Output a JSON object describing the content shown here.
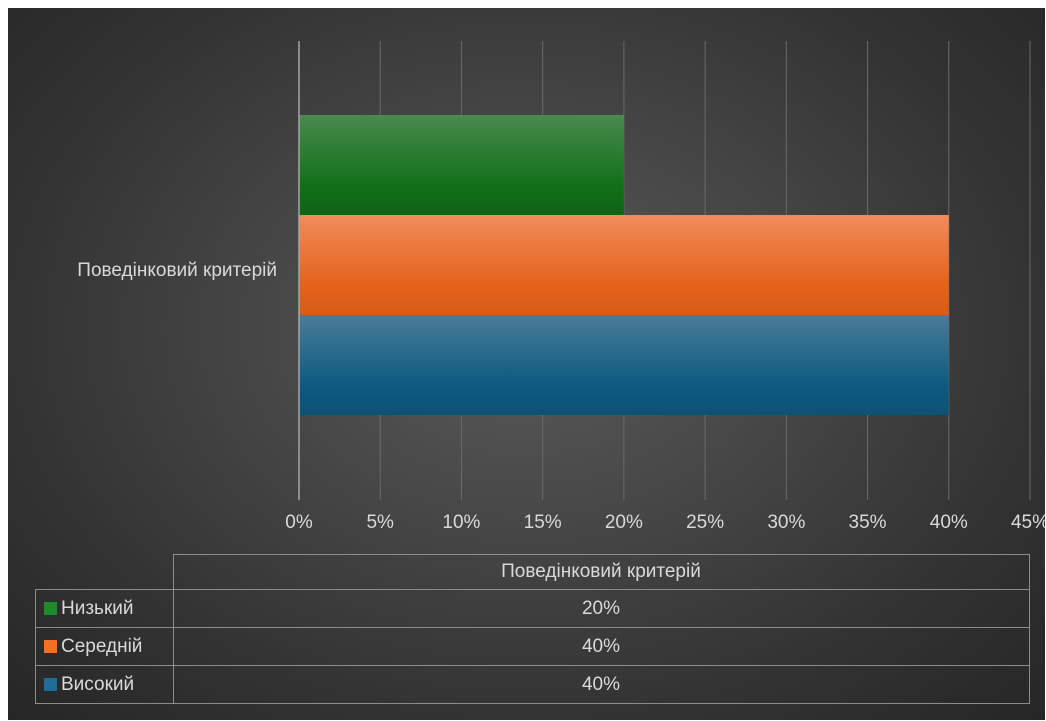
{
  "chart_data": {
    "type": "bar",
    "orientation": "horizontal",
    "categories": [
      "Поведінковий критерій"
    ],
    "series": [
      {
        "name": "Низький",
        "values": [
          20
        ],
        "color": "#1a7a22"
      },
      {
        "name": "Середній",
        "values": [
          40
        ],
        "color": "#ec6a26"
      },
      {
        "name": "Високий",
        "values": [
          40
        ],
        "color": "#1a6288"
      }
    ],
    "xlim": [
      0,
      45
    ],
    "x_ticks": [
      0,
      5,
      10,
      15,
      20,
      25,
      30,
      35,
      40,
      45
    ],
    "x_tick_labels": [
      "0%",
      "5%",
      "10%",
      "15%",
      "20%",
      "25%",
      "30%",
      "35%",
      "40%",
      "45%"
    ],
    "grid": true,
    "legend": "data table below chart",
    "title": "",
    "xlabel": "",
    "ylabel": ""
  },
  "table": {
    "column_header": "Поведінковий критерій",
    "rows": [
      {
        "label": "Низький",
        "value": "20%",
        "color": "#1f8a2a"
      },
      {
        "label": "Середній",
        "value": "40%",
        "color": "#f07028"
      },
      {
        "label": "Високий",
        "value": "40%",
        "color": "#1d6d98"
      }
    ]
  },
  "colors": {
    "background": "#404040",
    "text": "#d9d9d9",
    "gridline": "#6a6a6a",
    "axis": "#a6a6a6"
  }
}
